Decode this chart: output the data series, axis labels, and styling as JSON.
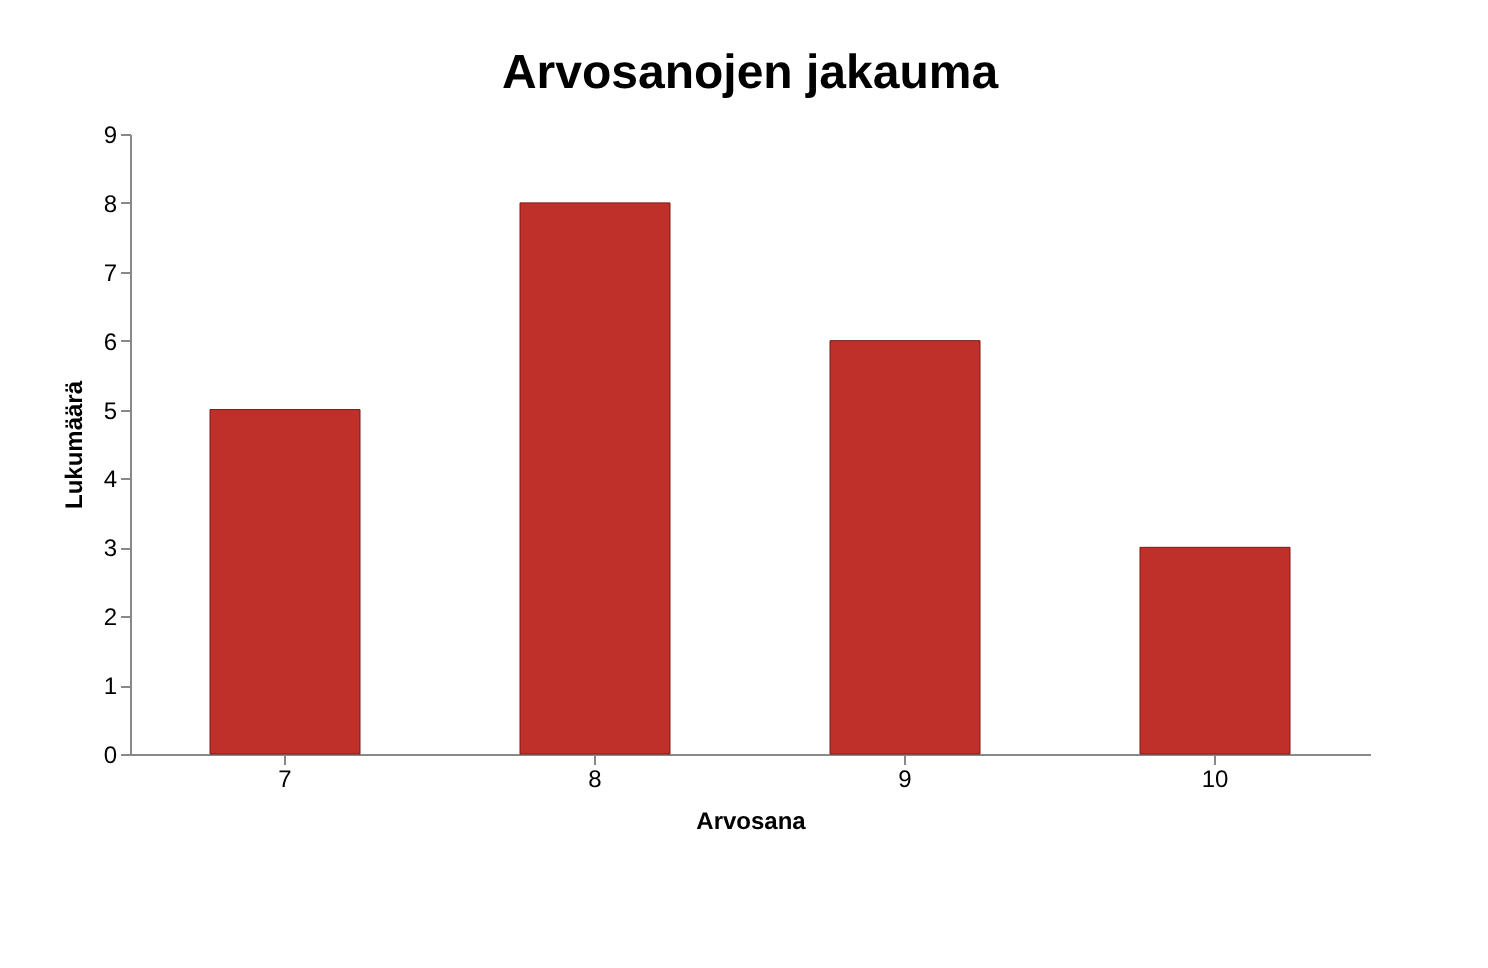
{
  "chart_data": {
    "type": "bar",
    "title": "Arvosanojen jakauma",
    "xlabel": "Arvosana",
    "ylabel": "Lukumäärä",
    "categories": [
      "7",
      "8",
      "9",
      "10"
    ],
    "values": [
      5,
      8,
      6,
      3
    ],
    "color": "#c0302a",
    "ylim": [
      0,
      9
    ],
    "yticks": [
      0,
      1,
      2,
      3,
      4,
      5,
      6,
      7,
      8,
      9
    ],
    "grid": false
  }
}
